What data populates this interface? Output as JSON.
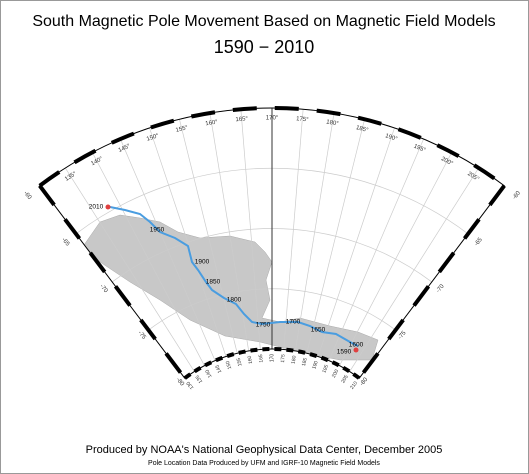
{
  "header": {
    "title": "South Magnetic Pole Movement Based on Magnetic Field Models",
    "subtitle": "1590 − 2010"
  },
  "map": {
    "meridian_labels_top": [
      "135°",
      "140°",
      "145°",
      "150°",
      "155°",
      "160°",
      "165°",
      "170°",
      "175°",
      "180°",
      "185°",
      "190°",
      "195°",
      "200°",
      "205°"
    ],
    "meridian_labels_bottom": [
      "130",
      "135",
      "140",
      "145",
      "150",
      "155",
      "160",
      "165",
      "170",
      "175",
      "180",
      "185",
      "190",
      "195",
      "200",
      "205",
      "210"
    ],
    "latitude_labels_left": [
      "-60",
      "-65",
      "-70",
      "-75",
      "-80"
    ],
    "latitude_labels_right": [
      "-60",
      "-65",
      "-70",
      "-75",
      "-80"
    ],
    "year_labels": [
      "2010",
      "1950",
      "1900",
      "1850",
      "1800",
      "1750",
      "1700",
      "1650",
      "1600",
      "1590"
    ]
  },
  "footer": {
    "line1": "Produced by NOAA's National Geophysical Data Center, December 2005",
    "line2": "Pole Location Data Produced by UFM and IGRF-10 Magnetic Field Models"
  }
}
